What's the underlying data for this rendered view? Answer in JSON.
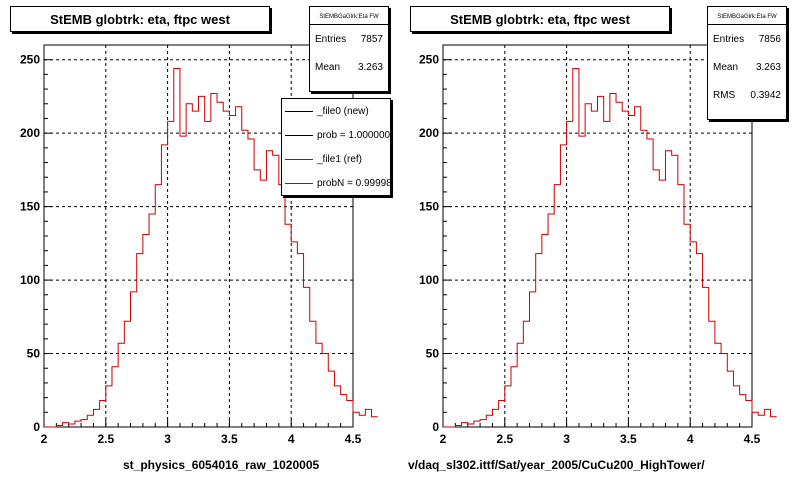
{
  "chart_data": [
    {
      "type": "histogram",
      "title": "StEMB globtrk: eta, ftpc west",
      "xlabel": "st_physics_6054016_raw_1020005",
      "xlim": [
        2,
        4.5
      ],
      "ylim": [
        0,
        260
      ],
      "x_ticks": [
        "2",
        "2.5",
        "3",
        "3.5",
        "4",
        "4.5"
      ],
      "y_ticks": [
        "0",
        "50",
        "100",
        "150",
        "200",
        "250"
      ],
      "grid": true,
      "bin_width": 0.05,
      "bin_start": 2.0,
      "stats": {
        "name": "StEMBGaGlrk:Eta FW",
        "rows": [
          {
            "label": "Entries",
            "value": "7857"
          },
          {
            "label": "Mean",
            "value": "3.263"
          }
        ]
      },
      "legend": [
        {
          "label": "_file0 (new)",
          "color": "#000000"
        },
        {
          "label": "prob = 1.000000",
          "color": "#000000"
        },
        {
          "label": "_file1 (ref)",
          "color": "#cc0000"
        },
        {
          "label": "probN = 0.999985",
          "color": "#cc0000"
        }
      ],
      "series": [
        {
          "name": "_file0 (new)",
          "color": "#cc0000",
          "values": [
            0,
            0,
            1,
            3,
            2,
            4,
            5,
            8,
            12,
            18,
            28,
            41,
            57,
            72,
            92,
            118,
            131,
            145,
            165,
            192,
            208,
            244,
            198,
            220,
            215,
            225,
            208,
            227,
            221,
            215,
            212,
            218,
            202,
            196,
            175,
            168,
            188,
            185,
            165,
            138,
            126,
            118,
            95,
            72,
            57,
            50,
            38,
            28,
            22,
            18,
            10,
            8,
            12,
            7
          ]
        }
      ]
    },
    {
      "type": "histogram",
      "title": "StEMB globtrk: eta, ftpc west",
      "xlabel": "v/daq_sl302.ittf/Sat/year_2005/CuCu200_HighTower/",
      "xlim": [
        2,
        4.5
      ],
      "ylim": [
        0,
        260
      ],
      "x_ticks": [
        "2",
        "2.5",
        "3",
        "3.5",
        "4",
        "4.5"
      ],
      "y_ticks": [
        "0",
        "50",
        "100",
        "150",
        "200",
        "250"
      ],
      "grid": true,
      "bin_width": 0.05,
      "bin_start": 2.0,
      "stats": {
        "name": "StEMBGaGlrk:Eta FW",
        "rows": [
          {
            "label": "Entries",
            "value": "7856"
          },
          {
            "label": "Mean",
            "value": "3.263"
          },
          {
            "label": "RMS",
            "value": "0.3942"
          }
        ]
      },
      "series": [
        {
          "name": "_file1 (ref)",
          "color": "#cc0000",
          "values": [
            0,
            0,
            1,
            3,
            2,
            4,
            5,
            8,
            12,
            18,
            28,
            41,
            57,
            72,
            92,
            118,
            131,
            145,
            165,
            192,
            208,
            244,
            198,
            220,
            215,
            225,
            208,
            227,
            221,
            215,
            212,
            218,
            202,
            196,
            175,
            168,
            188,
            185,
            165,
            138,
            126,
            118,
            95,
            72,
            57,
            50,
            38,
            28,
            22,
            18,
            10,
            8,
            12,
            7
          ]
        }
      ]
    }
  ]
}
